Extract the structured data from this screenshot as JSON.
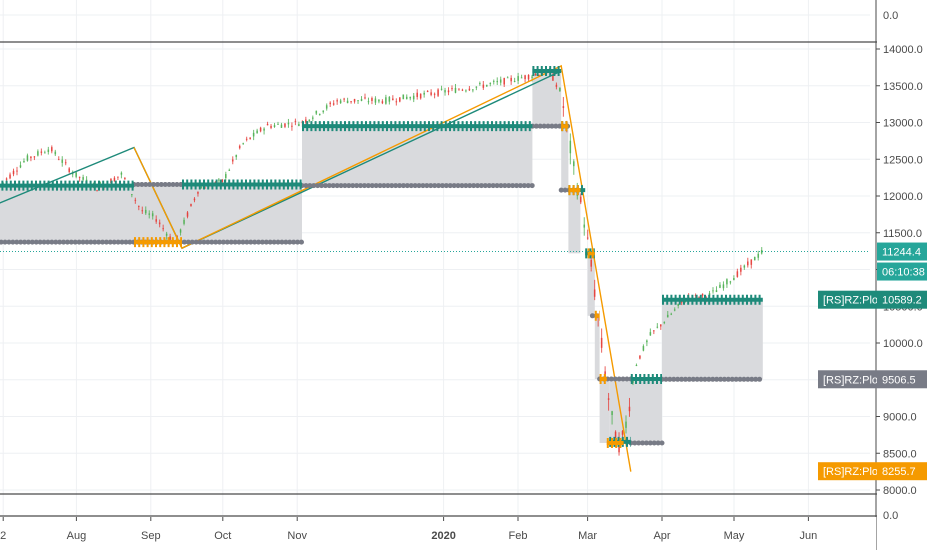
{
  "chart_data": {
    "type": "line",
    "title": "",
    "xlabel": "",
    "ylabel": "",
    "grid": true,
    "ylim": [
      8000,
      14000
    ],
    "x_tick_labels": [
      "2",
      "Aug",
      "Sep",
      "Oct",
      "Nov",
      "2020",
      "Feb",
      "Mar",
      "Apr",
      "May",
      "Jun"
    ],
    "x_ticks": [
      {
        "label": "2",
        "t": 0.5
      },
      {
        "label": "Aug",
        "t": 31
      },
      {
        "label": "Sep",
        "t": 62
      },
      {
        "label": "Oct",
        "t": 92
      },
      {
        "label": "Nov",
        "t": 123
      },
      {
        "label": "2020",
        "t": 184
      },
      {
        "label": "Feb",
        "t": 215
      },
      {
        "label": "Mar",
        "t": 244
      },
      {
        "label": "Apr",
        "t": 275
      },
      {
        "label": "May",
        "t": 305
      },
      {
        "label": "Jun",
        "t": 336
      }
    ],
    "y_tick_labels": [
      "14000.0",
      "13500.0",
      "13000.0",
      "12500.0",
      "12000.0",
      "11500.0",
      "11000.0",
      "10500.0",
      "10000.0",
      "9500.0",
      "9000.0",
      "8500.0",
      "8000.0"
    ],
    "top_pane_tick": "0.0",
    "bottom_pane_tick": "0.0",
    "last_price": "11244.4",
    "countdown": "06:10:38",
    "colors": {
      "teal": "#1e8a7a",
      "gray": "#787b86",
      "orange": "#f59a00",
      "fill": "#d9dadd",
      "up_candle": "#4caf50",
      "down_candle": "#e53935"
    },
    "series": [
      {
        "name": "[RS]RZ:Plot",
        "style": "teal-levels",
        "label_value": "10589.2",
        "segments": [
          {
            "t0": -2,
            "t1": 55,
            "y": 12142
          },
          {
            "t0": 75,
            "t1": 125,
            "y": 12156
          },
          {
            "t0": 125,
            "t1": 221,
            "y": 12950
          },
          {
            "t0": 221,
            "t1": 233,
            "y": 13700
          },
          {
            "t0": 233,
            "t1": 236,
            "y": 12950
          },
          {
            "t0": 236,
            "t1": 243,
            "y": 12080
          },
          {
            "t0": 243,
            "t1": 247,
            "y": 11220
          },
          {
            "t0": 253,
            "t1": 262,
            "y": 8655
          },
          {
            "t0": 262,
            "t1": 275,
            "y": 9510
          },
          {
            "t0": 275,
            "t1": 317,
            "y": 10589
          }
        ]
      },
      {
        "name": "[RS]RZ:Plot",
        "style": "gray-levels",
        "label_value": "9506.5",
        "segments": [
          {
            "t0": -2,
            "t1": 125,
            "y": 11372
          },
          {
            "t0": 55,
            "t1": 75,
            "y": 12156
          },
          {
            "t0": 125,
            "t1": 221,
            "y": 12142
          },
          {
            "t0": 221,
            "t1": 236,
            "y": 12950
          },
          {
            "t0": 233,
            "t1": 241,
            "y": 12080
          },
          {
            "t0": 246,
            "t1": 249,
            "y": 10370
          },
          {
            "t0": 249,
            "t1": 262,
            "y": 9510
          },
          {
            "t0": 262,
            "t1": 275,
            "y": 8640
          },
          {
            "t0": 275,
            "t1": 317,
            "y": 9506
          }
        ]
      },
      {
        "name": "[RS]RZ:Plot",
        "style": "orange-levels",
        "label_value": "8255.7",
        "segments": [
          {
            "t0": 55,
            "t1": 75,
            "y": 11372
          },
          {
            "t0": 233,
            "t1": 236,
            "y": 12950
          },
          {
            "t0": 236,
            "t1": 241,
            "y": 12080
          },
          {
            "t0": 244,
            "t1": 247,
            "y": 11220
          },
          {
            "t0": 247,
            "t1": 249,
            "y": 10370
          },
          {
            "t0": 249,
            "t1": 252,
            "y": 9510
          },
          {
            "t0": 252,
            "t1": 259,
            "y": 8640
          }
        ]
      }
    ],
    "fills": [
      {
        "t0": -2,
        "t1": 55,
        "top": 12142,
        "bottom": 11372
      },
      {
        "t0": 55,
        "t1": 75,
        "top": 12156,
        "bottom": 11372
      },
      {
        "t0": 75,
        "t1": 125,
        "top": 12156,
        "bottom": 11372
      },
      {
        "t0": 125,
        "t1": 221,
        "top": 12950,
        "bottom": 12142
      },
      {
        "t0": 221,
        "t1": 233,
        "top": 13700,
        "bottom": 12950
      },
      {
        "t0": 233,
        "t1": 236,
        "top": 12950,
        "bottom": 12080
      },
      {
        "t0": 236,
        "t1": 241,
        "top": 12080,
        "bottom": 11220
      },
      {
        "t0": 244,
        "t1": 247,
        "top": 11220,
        "bottom": 10370
      },
      {
        "t0": 247,
        "t1": 249,
        "top": 10370,
        "bottom": 9510
      },
      {
        "t0": 249,
        "t1": 253,
        "top": 9510,
        "bottom": 8640
      },
      {
        "t0": 253,
        "t1": 275,
        "top": 9510,
        "bottom": 8640
      },
      {
        "t0": 275,
        "t1": 317,
        "top": 10589,
        "bottom": 9506
      }
    ],
    "zigzag_teal": [
      {
        "t": -2,
        "y": 11890
      },
      {
        "t": 55,
        "y": 12660
      },
      {
        "t": 75,
        "y": 11290
      },
      {
        "t": 233,
        "y": 13700
      }
    ],
    "zigzag_orange": [
      {
        "t": 55,
        "y": 12660
      },
      {
        "t": 75,
        "y": 11290
      },
      {
        "t": 233,
        "y": 13770
      },
      {
        "t": 262,
        "y": 8250
      }
    ]
  }
}
